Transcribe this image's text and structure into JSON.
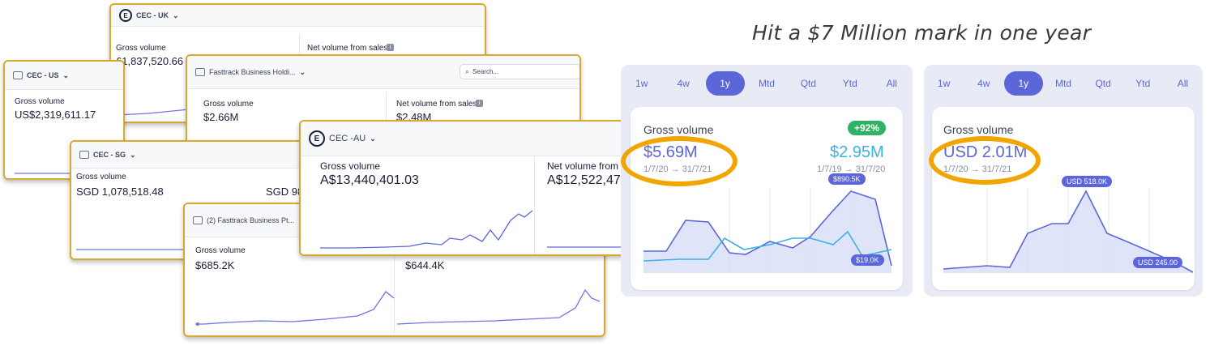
{
  "tagline": "Hit a $7 Million mark in one year",
  "cards": {
    "us": {
      "account": "CEC - US",
      "gross_label": "Gross volume",
      "gross_value": "US$2,319,611.17"
    },
    "uk": {
      "account": "CEC - UK",
      "gross_label": "Gross volume",
      "gross_value": "£1,837,520.66",
      "net_label": "Net volume from sales"
    },
    "fasttrack": {
      "account": "Fasttrack Business Holdi...",
      "search_placeholder": "Search...",
      "gross_label": "Gross volume",
      "gross_value": "$2.66M",
      "net_label": "Net volume from sales",
      "net_value": "$2.48M"
    },
    "sg": {
      "account": "CEC - SG",
      "gross_label": "Gross volume",
      "gross_value": "SGD 1,078,518.48",
      "net_value_partial": "SGD 98"
    },
    "pte": {
      "account": "(2) Fasttrack Business Pt...",
      "gross_label": "Gross volume",
      "gross_value": "$685.2K",
      "net_value": "$644.4K"
    },
    "au": {
      "account": "CEC -AU",
      "gross_label": "Gross volume",
      "gross_value": "A$13,440,401.03",
      "net_label": "Net volume from",
      "net_value": "A$12,522,47"
    }
  },
  "panels": {
    "tabs": [
      "1w",
      "4w",
      "1y",
      "Mtd",
      "Qtd",
      "Ytd",
      "All"
    ],
    "active_tab": "1y",
    "left": {
      "title": "Gross volume",
      "change_badge": "+92%",
      "current_value": "$5.69M",
      "current_range": "1/7/20 → 31/7/21",
      "previous_value": "$2.95M",
      "previous_range": "1/7/19 → 31/7/20",
      "peak_label": "$890.5K",
      "end_label": "$19.0K"
    },
    "right": {
      "title": "Gross volume",
      "current_value": "USD 2.01M",
      "current_range": "1/7/20 → 31/7/21",
      "peak_label": "USD 518.0K",
      "end_label": "USD 245.00"
    }
  },
  "colors": {
    "card_border": "#d9a82f",
    "accent": "#5b67d8",
    "compare": "#3bb2e6",
    "highlight_ring": "#f2a500",
    "badge": "#2fb265"
  }
}
